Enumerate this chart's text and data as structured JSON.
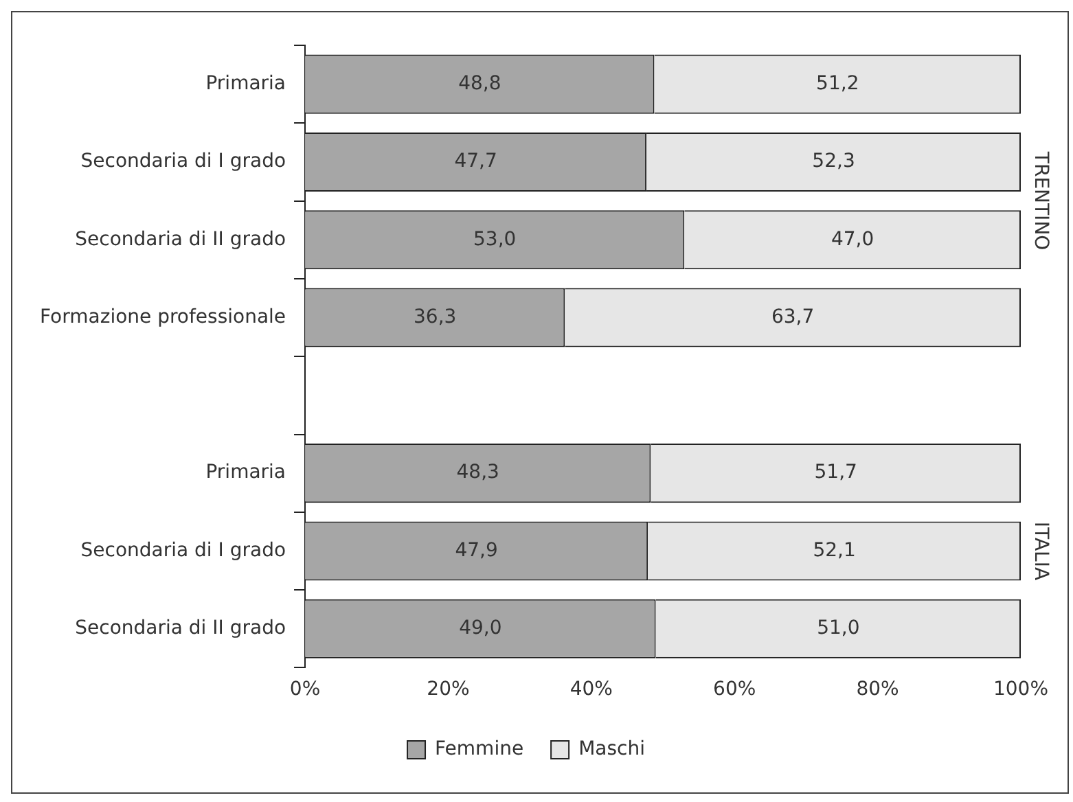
{
  "chart_data": {
    "type": "bar",
    "orientation": "horizontal",
    "stacked": true,
    "categories": [
      "Primaria",
      "Secondaria di I grado",
      "Secondaria di II grado",
      "Formazione professionale",
      null,
      "Primaria",
      "Secondaria di I grado",
      "Secondaria di II grado"
    ],
    "series": [
      {
        "name": "Femmine",
        "color": "#a6a6a6",
        "values": [
          48.8,
          47.7,
          53.0,
          36.3,
          null,
          48.3,
          47.9,
          49.0
        ],
        "value_labels": [
          "48,8",
          "47,7",
          "53,0",
          "36,3",
          null,
          "48,3",
          "47,9",
          "49,0"
        ]
      },
      {
        "name": "Maschi",
        "color": "#e6e6e6",
        "values": [
          51.2,
          52.3,
          47.0,
          63.7,
          null,
          51.7,
          52.1,
          51.0
        ],
        "value_labels": [
          "51,2",
          "52,3",
          "47,0",
          "63,7",
          null,
          "51,7",
          "52,1",
          "51,0"
        ]
      }
    ],
    "xlim": [
      0,
      100
    ],
    "xticks": [
      {
        "value": 0,
        "label": "0%"
      },
      {
        "value": 20,
        "label": "20%"
      },
      {
        "value": 40,
        "label": "40%"
      },
      {
        "value": 60,
        "label": "60%"
      },
      {
        "value": 80,
        "label": "80%"
      },
      {
        "value": 100,
        "label": "100%"
      }
    ],
    "annotations": [
      "TRENTINO",
      "ITALIA"
    ],
    "legend": "bottom",
    "grid": false
  }
}
